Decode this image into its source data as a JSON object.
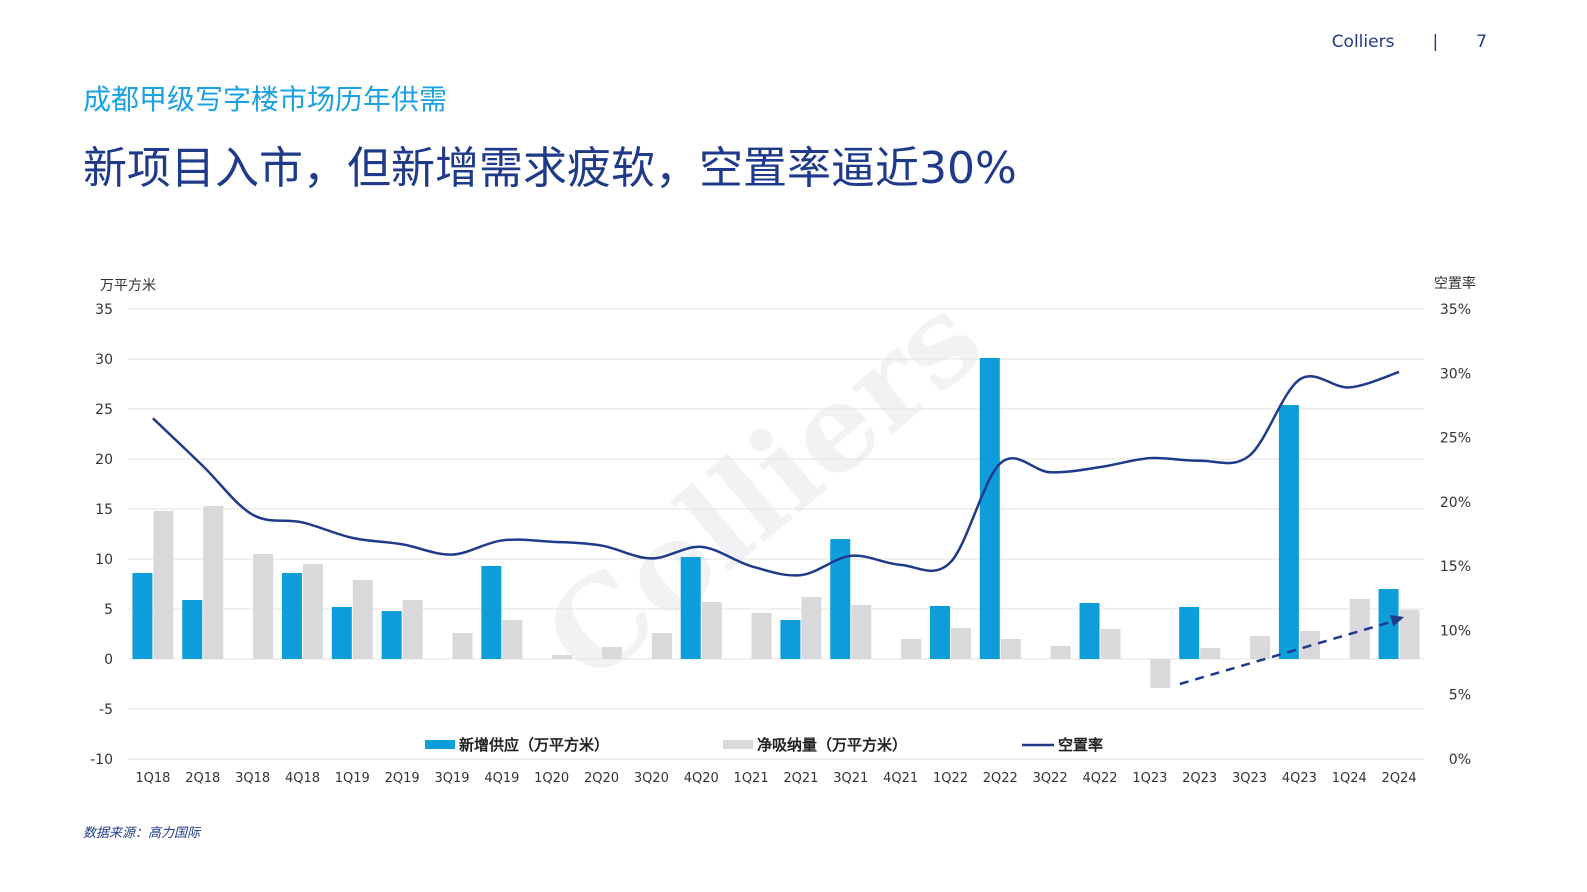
{
  "header": {
    "brand": "Colliers",
    "separator": "|",
    "page_number": "7"
  },
  "subtitle": "成都甲级写字楼市场历年供需",
  "title": "新项目入市，但新增需求疲软，空置率逼近30%",
  "source": "数据来源：高力国际",
  "watermark": "Colliers",
  "colors": {
    "supply": "#0e9ddb",
    "absorption": "#d9d9db",
    "vacancy": "#1f3a8a",
    "grid": "#e3e3e3"
  },
  "chart_data": {
    "type": "bar",
    "categories": [
      "1Q18",
      "2Q18",
      "3Q18",
      "4Q18",
      "1Q19",
      "2Q19",
      "3Q19",
      "4Q19",
      "1Q20",
      "2Q20",
      "3Q20",
      "4Q20",
      "1Q21",
      "2Q21",
      "3Q21",
      "4Q21",
      "1Q22",
      "2Q22",
      "3Q22",
      "4Q22",
      "1Q23",
      "2Q23",
      "3Q23",
      "4Q23",
      "1Q24",
      "2Q24"
    ],
    "ylabel": "万平方米",
    "y2label": "空置率",
    "ylim": [
      -10,
      35
    ],
    "y2lim": [
      0,
      35
    ],
    "yticks": [
      "-10",
      "-5",
      "0",
      "5",
      "10",
      "15",
      "20",
      "25",
      "30",
      "35"
    ],
    "y2ticks": [
      "0%",
      "5%",
      "10%",
      "15%",
      "20%",
      "25%",
      "30%",
      "35%"
    ],
    "series": [
      {
        "name": "新增供应（万平方米）",
        "type": "bar",
        "values": [
          8.6,
          5.9,
          0,
          8.6,
          5.2,
          4.8,
          0,
          9.3,
          0,
          0,
          0,
          10.2,
          0,
          3.9,
          12.0,
          0,
          5.3,
          30.1,
          0,
          5.6,
          0,
          5.2,
          0,
          25.4,
          0,
          7.0
        ]
      },
      {
        "name": "净吸纳量（万平方米）",
        "type": "bar",
        "values": [
          14.8,
          15.3,
          10.5,
          9.5,
          7.9,
          5.9,
          2.6,
          3.9,
          0.4,
          1.2,
          2.6,
          5.7,
          4.6,
          6.2,
          5.4,
          2.0,
          3.1,
          2.0,
          1.3,
          3.0,
          -2.9,
          1.1,
          2.3,
          2.8,
          6.0,
          4.9
        ]
      },
      {
        "name": "空置率",
        "type": "line",
        "values": [
          26.5,
          22.8,
          19.0,
          18.4,
          17.2,
          16.7,
          15.9,
          17.0,
          16.9,
          16.6,
          15.6,
          16.5,
          15.0,
          14.3,
          15.8,
          15.1,
          15.3,
          23.0,
          22.3,
          22.7,
          23.4,
          23.2,
          23.6,
          29.5,
          28.9,
          30.1
        ]
      }
    ],
    "trend_arrow": {
      "from_category": "1Q23",
      "from_value": -2.5,
      "to_category": "2Q24",
      "to_value": 4.2
    }
  }
}
